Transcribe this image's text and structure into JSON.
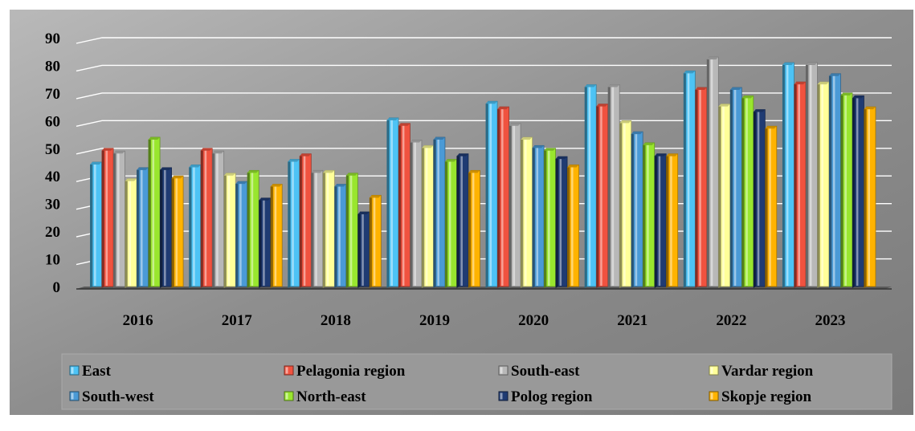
{
  "chart_data": {
    "type": "bar",
    "title": "",
    "xlabel": "",
    "ylabel": "",
    "ylim": [
      0,
      90
    ],
    "yticks": [
      0,
      10,
      20,
      30,
      40,
      50,
      60,
      70,
      80,
      90
    ],
    "grid": true,
    "legend_position": "bottom",
    "categories": [
      "2016",
      "2017",
      "2018",
      "2019",
      "2020",
      "2021",
      "2022",
      "2023"
    ],
    "series": [
      {
        "name": "East",
        "color": "#4dc3f5",
        "values": [
          45,
          44,
          46,
          61,
          67,
          73,
          78,
          81
        ]
      },
      {
        "name": "Pelagonia region",
        "color": "#f0523f",
        "values": [
          50,
          50,
          48,
          59,
          65,
          66,
          72,
          74
        ]
      },
      {
        "name": "South-east",
        "color": "#b8b8b8",
        "values": [
          49,
          49,
          42,
          53,
          59,
          73,
          83,
          81
        ]
      },
      {
        "name": "Vardar region",
        "color": "#ffff99",
        "values": [
          39,
          41,
          42,
          51,
          54,
          60,
          66,
          74
        ]
      },
      {
        "name": "South-west",
        "color": "#4a9ad6",
        "values": [
          43,
          38,
          37,
          54,
          51,
          56,
          72,
          77
        ]
      },
      {
        "name": "North-east",
        "color": "#99e62e",
        "values": [
          54,
          42,
          41,
          46,
          50,
          52,
          69,
          70
        ]
      },
      {
        "name": "Polog region",
        "color": "#1f3b73",
        "values": [
          43,
          32,
          27,
          48,
          47,
          48,
          64,
          69
        ]
      },
      {
        "name": "Skopje region",
        "color": "#ffb300",
        "values": [
          40,
          37,
          33,
          42,
          44,
          48,
          58,
          65
        ]
      }
    ]
  }
}
